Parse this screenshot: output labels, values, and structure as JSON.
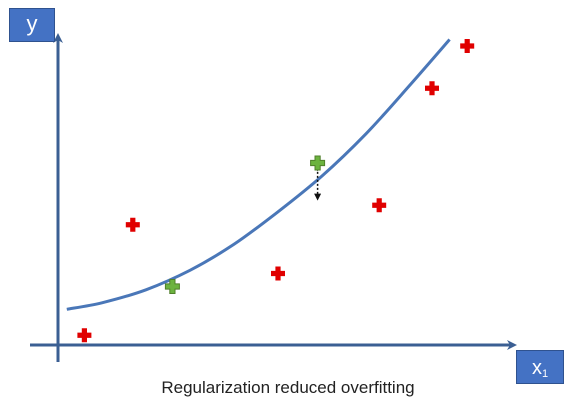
{
  "chart_data": {
    "type": "scatter",
    "title": "",
    "caption": "Regularization reduced overfitting",
    "ylabel": "y",
    "xlabel_main": "x",
    "xlabel_sub": "1",
    "grid": false,
    "legend": "none",
    "colors": {
      "axis": "#3b5f93",
      "curve": "#4a77b8",
      "train_point": "#e00000",
      "test_point": "#6cb33f",
      "label_box": "#4472c4"
    },
    "train_points": [
      {
        "x": 0.6,
        "y": 0.3
      },
      {
        "x": 1.7,
        "y": 3.7
      },
      {
        "x": 5.0,
        "y": 2.2
      },
      {
        "x": 7.3,
        "y": 4.3
      },
      {
        "x": 8.5,
        "y": 7.9
      },
      {
        "x": 9.3,
        "y": 9.2
      }
    ],
    "test_points": [
      {
        "x": 2.6,
        "y": 1.8
      },
      {
        "x": 5.9,
        "y": 5.6
      }
    ],
    "fit_curve": [
      {
        "x": 0.2,
        "y": 1.1
      },
      {
        "x": 1.0,
        "y": 1.3
      },
      {
        "x": 2.0,
        "y": 1.7
      },
      {
        "x": 3.0,
        "y": 2.3
      },
      {
        "x": 4.0,
        "y": 3.1
      },
      {
        "x": 5.0,
        "y": 4.1
      },
      {
        "x": 6.0,
        "y": 5.2
      },
      {
        "x": 7.0,
        "y": 6.5
      },
      {
        "x": 8.0,
        "y": 8.0
      },
      {
        "x": 8.9,
        "y": 9.4
      }
    ],
    "error_bar": {
      "x": 5.9,
      "y_from": 5.45,
      "y_to": 4.55
    },
    "xlim": [
      0,
      10
    ],
    "ylim": [
      0,
      10
    ]
  }
}
